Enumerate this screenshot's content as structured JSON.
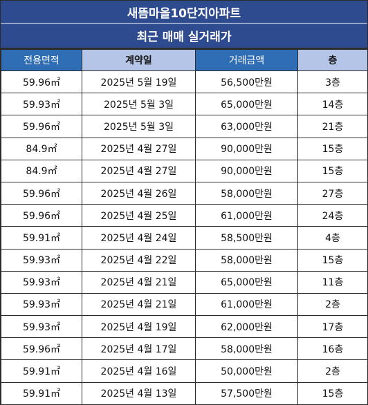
{
  "header": {
    "title": "새뜸마을10단지아파트",
    "subtitle": "최근 매매 실거래가"
  },
  "columns": [
    "전용면적",
    "계약일",
    "거래금액",
    "층"
  ],
  "colors": {
    "header_dark": "#2f4b8f",
    "header_blue": "#2f6db5",
    "header_light": "#b4c5e7"
  },
  "rows": [
    [
      "59.96㎡",
      "2025년 5월 19일",
      "56,500만원",
      "3층"
    ],
    [
      "59.93㎡",
      "2025년 5월 3일",
      "65,000만원",
      "14층"
    ],
    [
      "59.96㎡",
      "2025년 5월 3일",
      "63,000만원",
      "21층"
    ],
    [
      "84.9㎡",
      "2025년 4월 27일",
      "90,000만원",
      "15층"
    ],
    [
      "84.9㎡",
      "2025년 4월 27일",
      "90,000만원",
      "15층"
    ],
    [
      "59.96㎡",
      "2025년 4월 26일",
      "58,000만원",
      "27층"
    ],
    [
      "59.96㎡",
      "2025년 4월 25일",
      "61,000만원",
      "24층"
    ],
    [
      "59.91㎡",
      "2025년 4월 24일",
      "58,500만원",
      "4층"
    ],
    [
      "59.93㎡",
      "2025년 4월 22일",
      "58,000만원",
      "15층"
    ],
    [
      "59.93㎡",
      "2025년 4월 21일",
      "65,000만원",
      "11층"
    ],
    [
      "59.93㎡",
      "2025년 4월 21일",
      "61,000만원",
      "2층"
    ],
    [
      "59.93㎡",
      "2025년 4월 19일",
      "62,000만원",
      "17층"
    ],
    [
      "59.96㎡",
      "2025년 4월 17일",
      "58,000만원",
      "16층"
    ],
    [
      "59.91㎡",
      "2025년 4월 16일",
      "50,000만원",
      "2층"
    ],
    [
      "59.91㎡",
      "2025년 4월 13일",
      "57,500만원",
      "15층"
    ]
  ]
}
